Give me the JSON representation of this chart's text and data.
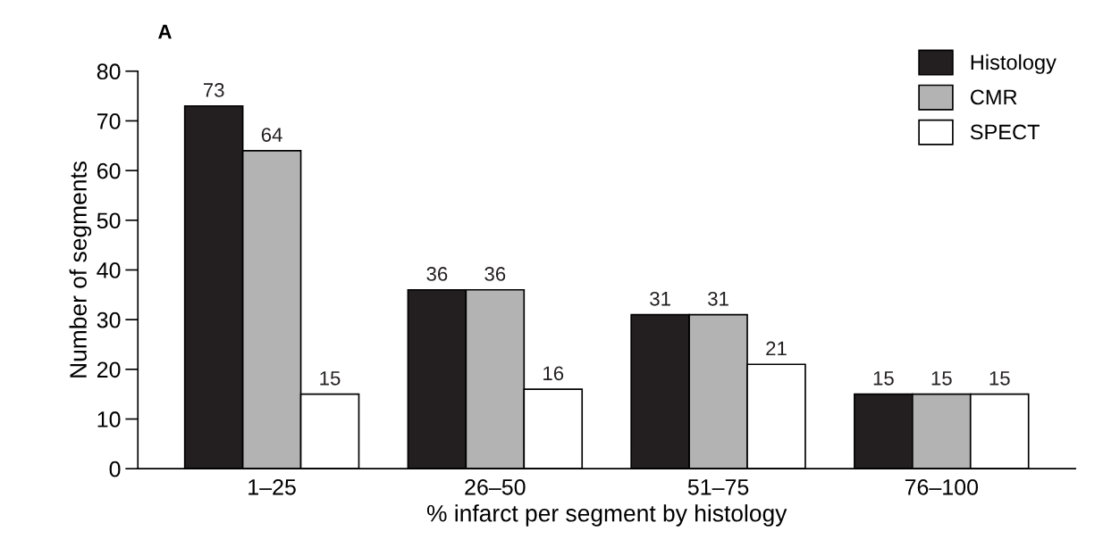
{
  "chart_data": {
    "type": "bar",
    "title": "A",
    "xlabel": "% infarct per segment by histology",
    "ylabel": "Number of segments",
    "categories": [
      "1–25",
      "26–50",
      "51–75",
      "76–100"
    ],
    "series": [
      {
        "name": "Histology",
        "color": "#231f20",
        "values": [
          73,
          36,
          31,
          15
        ]
      },
      {
        "name": "CMR",
        "color": "#b3b3b3",
        "values": [
          64,
          36,
          31,
          15
        ]
      },
      {
        "name": "SPECT",
        "color": "#ffffff",
        "values": [
          15,
          16,
          21,
          15
        ]
      }
    ],
    "ylim": [
      0,
      80
    ],
    "yticks": [
      0,
      10,
      20,
      30,
      40,
      50,
      60,
      70,
      80
    ],
    "grid": false,
    "legend": "top right",
    "data_labels": true
  }
}
